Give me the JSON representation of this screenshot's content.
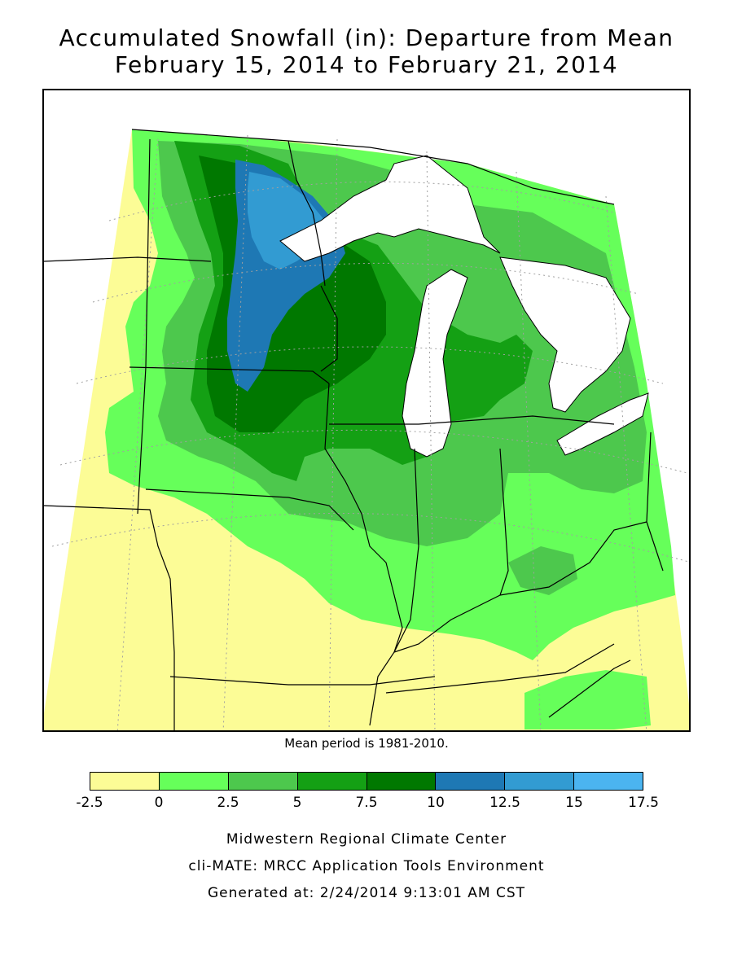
{
  "title_line1": "Accumulated Snowfall (in): Departure from Mean",
  "title_line2": "February 15, 2014 to February 21, 2014",
  "mean_note": "Mean period is 1981-2010.",
  "legend": {
    "bins": [
      {
        "from": -2.5,
        "to": 0,
        "color": "#fcfc96"
      },
      {
        "from": 0,
        "to": 2.5,
        "color": "#66ff5a"
      },
      {
        "from": 2.5,
        "to": 5,
        "color": "#4dc84d"
      },
      {
        "from": 5,
        "to": 7.5,
        "color": "#14a014"
      },
      {
        "from": 7.5,
        "to": 10,
        "color": "#007800"
      },
      {
        "from": 10,
        "to": 12.5,
        "color": "#1e78b4"
      },
      {
        "from": 12.5,
        "to": 15,
        "color": "#329bd2"
      },
      {
        "from": 15,
        "to": 17.5,
        "color": "#4bb4f0"
      }
    ],
    "ticks": [
      "-2.5",
      "0",
      "2.5",
      "5",
      "7.5",
      "10",
      "12.5",
      "15",
      "17.5"
    ]
  },
  "footer": {
    "line1": "Midwestern Regional Climate Center",
    "line2": "cli-MATE: MRCC Application Tools Environment",
    "line3": "Generated at: 2/24/2014 9:13:01 AM CST"
  },
  "colors": {
    "lake": "#ffffff",
    "state_border": "#000000",
    "grid": "#a0a0a0"
  }
}
